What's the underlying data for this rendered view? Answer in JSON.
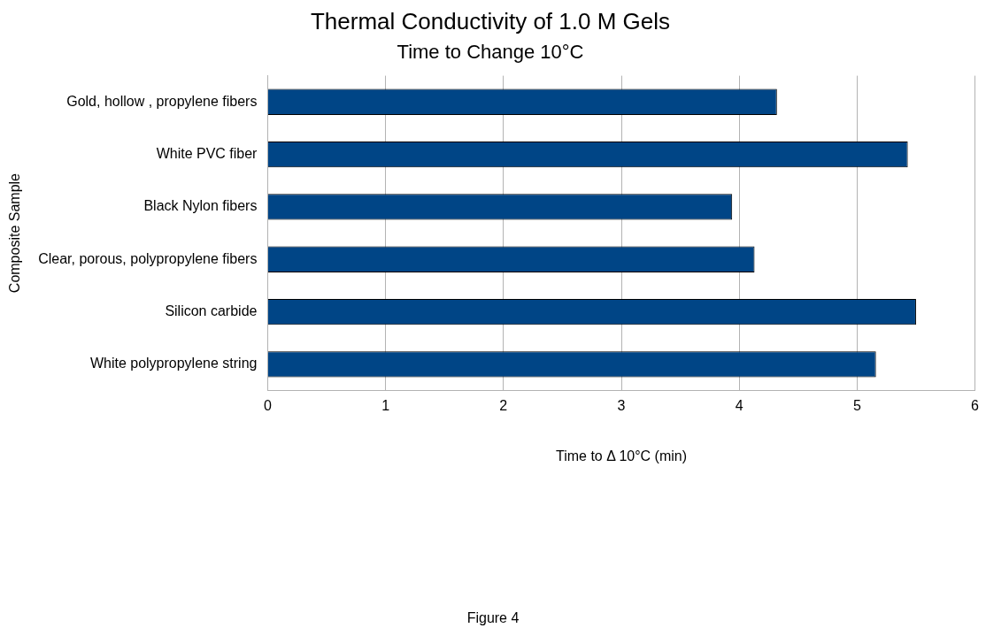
{
  "chart_data": {
    "type": "bar",
    "orientation": "horizontal",
    "title": "Thermal Conductivity of 1.0 M Gels",
    "subtitle": "Time to Change 10°C",
    "xlabel": "Time to Δ 10°C (min)",
    "ylabel": "Composite Sample",
    "categories": [
      "Gold, hollow , propylene fibers",
      "White PVC fiber",
      "Black Nylon fibers",
      "Clear, porous, polypropylene fibers",
      "Silicon carbide",
      "White polypropylene string"
    ],
    "values": [
      4.32,
      5.43,
      3.94,
      4.13,
      5.5,
      5.16
    ],
    "color": "#004586",
    "xlim": [
      0,
      6
    ],
    "xticks": [
      0,
      1,
      2,
      3,
      4,
      5,
      6
    ],
    "grid": "x",
    "legend": false,
    "annotations": [
      "Figure 4"
    ]
  }
}
